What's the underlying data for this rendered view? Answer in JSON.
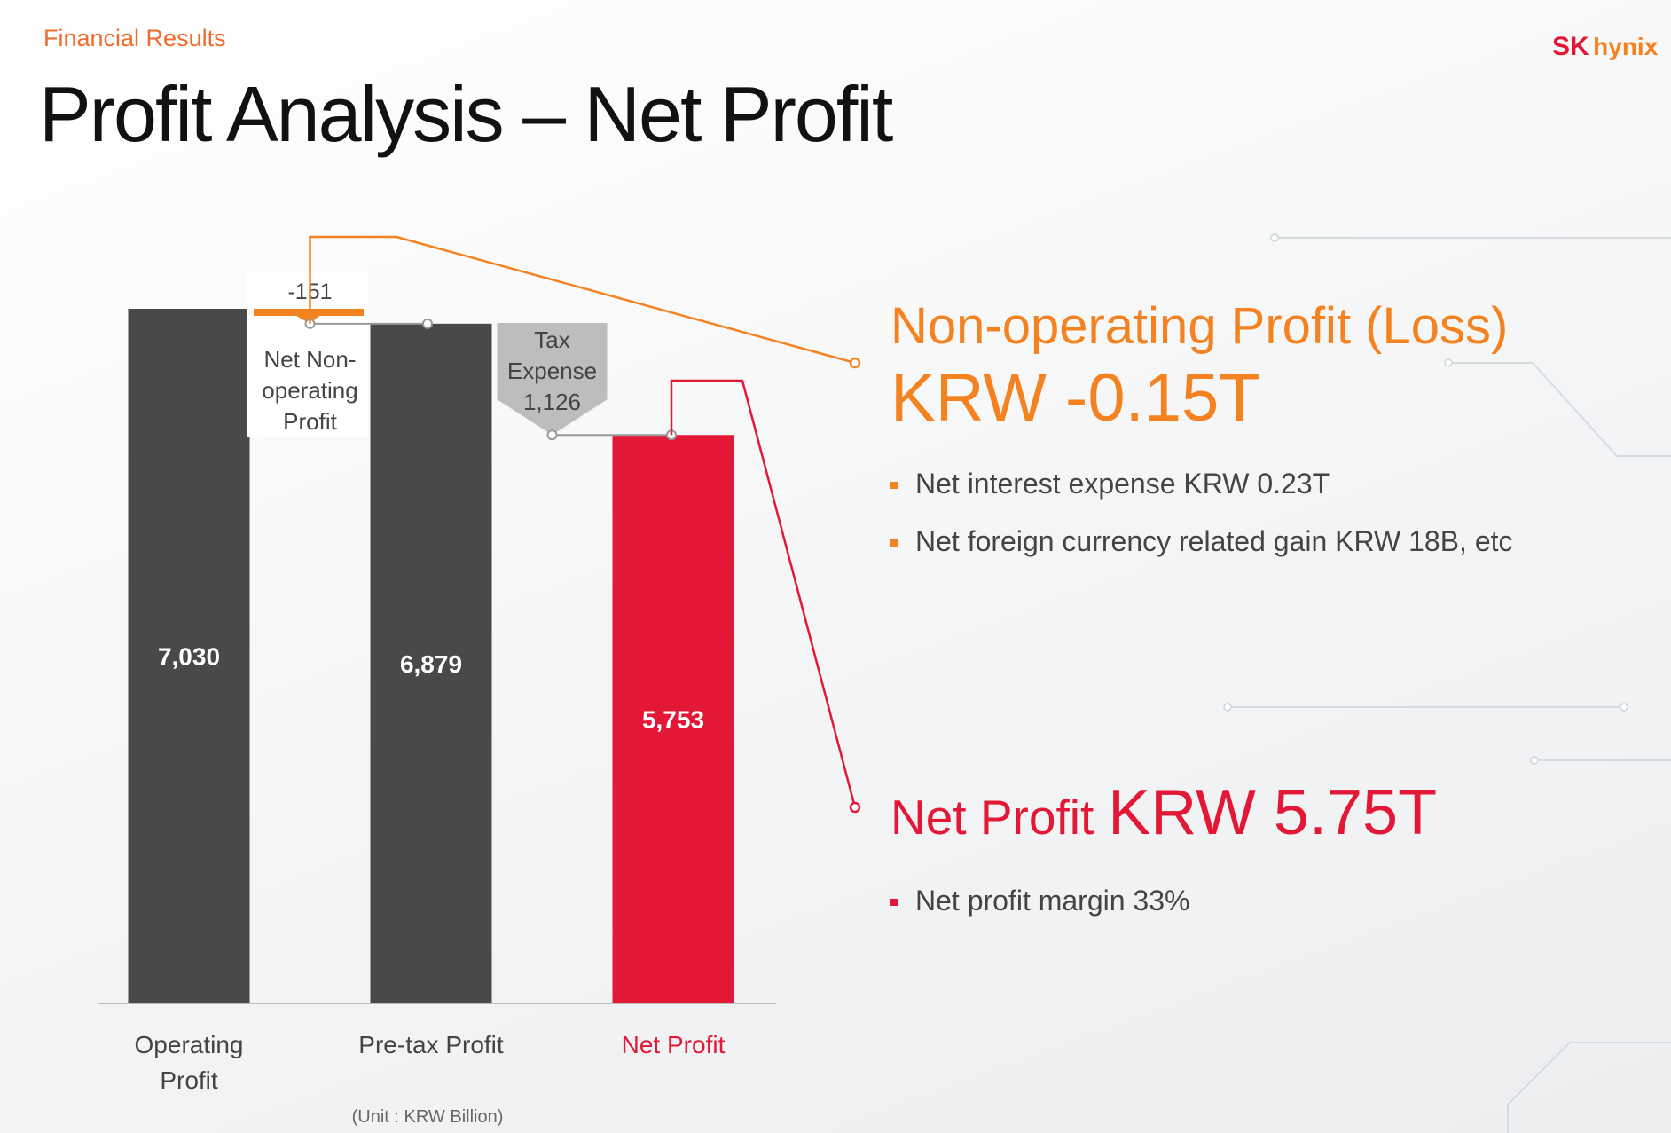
{
  "header": {
    "section": "Financial Results",
    "title": "Profit Analysis – Net Profit",
    "logo_sk": "SK",
    "logo_hynix": "hynix"
  },
  "chart_data": {
    "type": "waterfall",
    "categories": [
      "Operating Profit",
      "Pre-tax Profit",
      "Net Profit"
    ],
    "values": [
      7030,
      6879,
      5753
    ],
    "value_labels": [
      "7,030",
      "6,879",
      "5,753"
    ],
    "colors": [
      "#48494b",
      "#48494b",
      "#e31837"
    ],
    "steps": [
      {
        "name": "Net Non-operating Profit",
        "value": -151,
        "color": "#f58220"
      },
      {
        "name": "Tax Expense",
        "value": 1126,
        "value_label": "1,126",
        "color": "#bdbdbd"
      }
    ],
    "unit_note": "(Unit : KRW Billion)"
  },
  "notes": [
    {
      "heading": "Non-operating Profit (Loss)",
      "value": "KRW -0.15T",
      "bullets": [
        "Net interest expense KRW 0.23T",
        "Net foreign currency related gain KRW 18B, etc"
      ]
    },
    {
      "heading": "Net Profit",
      "value": "KRW 5.75T",
      "bullets": [
        "Net profit margin 33%"
      ]
    }
  ]
}
